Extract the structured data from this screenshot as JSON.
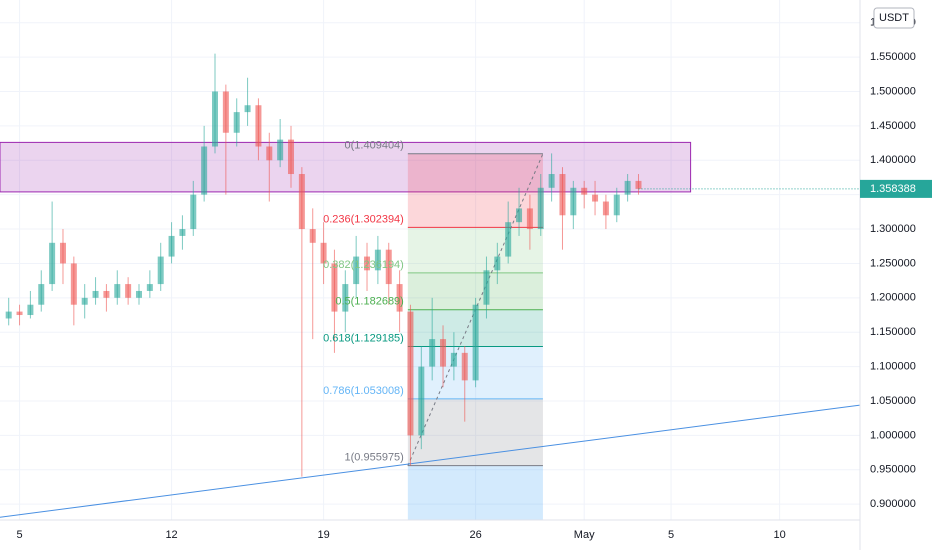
{
  "chart_data": {
    "type": "candlestick",
    "currency": "USDT",
    "xlim": [
      -0.9,
      38.7
    ],
    "xticks": [
      {
        "value": 0,
        "label": "5"
      },
      {
        "value": 7,
        "label": "12"
      },
      {
        "value": 14,
        "label": "19"
      },
      {
        "value": 21,
        "label": "26"
      },
      {
        "value": 26,
        "label": "May"
      },
      {
        "value": 30,
        "label": "5"
      },
      {
        "value": 35,
        "label": "10"
      }
    ],
    "ylim": [
      0.877,
      1.633
    ],
    "yticks": [
      {
        "value": 0.9,
        "label": "0.900000"
      },
      {
        "value": 0.95,
        "label": "0.950000"
      },
      {
        "value": 1.0,
        "label": "1.000000"
      },
      {
        "value": 1.05,
        "label": "1.050000"
      },
      {
        "value": 1.1,
        "label": "1.100000"
      },
      {
        "value": 1.15,
        "label": "1.150000"
      },
      {
        "value": 1.2,
        "label": "1.200000"
      },
      {
        "value": 1.25,
        "label": "1.250000"
      },
      {
        "value": 1.3,
        "label": "1.300000"
      },
      {
        "value": 1.35,
        "label": "1.350000"
      },
      {
        "value": 1.4,
        "label": "1.400000"
      },
      {
        "value": 1.45,
        "label": "1.450000"
      },
      {
        "value": 1.5,
        "label": "1.500000"
      },
      {
        "value": 1.55,
        "label": "1.550000"
      },
      {
        "value": 1.6,
        "label": "1.600000"
      }
    ],
    "grid": true,
    "up_color": "#26a69a",
    "down_color": "#ef5350",
    "x": [
      -0.5,
      0,
      0.5,
      1,
      1.5,
      2,
      2.5,
      3,
      3.5,
      4,
      4.5,
      5,
      5.5,
      6,
      6.5,
      7,
      7.5,
      8,
      8.5,
      9,
      9.5,
      10,
      10.5,
      11,
      11.5,
      12,
      12.5,
      13,
      13.5,
      14,
      14.5,
      15,
      15.5,
      16,
      16.5,
      17,
      17.5,
      18,
      18.5,
      19,
      19.5,
      20,
      20.5,
      21,
      21.5,
      22,
      22.5,
      23,
      23.5,
      24,
      24.5,
      25,
      25.5,
      26,
      26.5,
      27,
      27.5,
      28,
      28.5
    ],
    "open": [
      1.17,
      1.18,
      1.175,
      1.19,
      1.22,
      1.28,
      1.25,
      1.19,
      1.2,
      1.21,
      1.2,
      1.22,
      1.2,
      1.21,
      1.22,
      1.26,
      1.29,
      1.3,
      1.35,
      1.42,
      1.5,
      1.44,
      1.47,
      1.48,
      1.42,
      1.4,
      1.43,
      1.38,
      1.3,
      1.28,
      1.25,
      1.18,
      1.22,
      1.26,
      1.24,
      1.27,
      1.22,
      1.18,
      1.0,
      1.1,
      1.14,
      1.1,
      1.12,
      1.08,
      1.19,
      1.24,
      1.26,
      1.31,
      1.33,
      1.3,
      1.36,
      1.38,
      1.32,
      1.36,
      1.35,
      1.34,
      1.32,
      1.35,
      1.37
    ],
    "high": [
      1.2,
      1.19,
      1.21,
      1.24,
      1.34,
      1.3,
      1.26,
      1.22,
      1.23,
      1.22,
      1.24,
      1.23,
      1.22,
      1.24,
      1.28,
      1.31,
      1.32,
      1.37,
      1.45,
      1.555,
      1.51,
      1.49,
      1.52,
      1.49,
      1.44,
      1.46,
      1.45,
      1.39,
      1.33,
      1.31,
      1.27,
      1.24,
      1.29,
      1.28,
      1.29,
      1.28,
      1.24,
      1.19,
      1.13,
      1.2,
      1.16,
      1.15,
      1.13,
      1.2,
      1.26,
      1.28,
      1.34,
      1.36,
      1.35,
      1.38,
      1.41,
      1.39,
      1.37,
      1.37,
      1.37,
      1.35,
      1.36,
      1.38,
      1.38
    ],
    "low": [
      1.16,
      1.16,
      1.17,
      1.18,
      1.21,
      1.22,
      1.16,
      1.17,
      1.19,
      1.18,
      1.19,
      1.19,
      1.19,
      1.2,
      1.21,
      1.25,
      1.27,
      1.29,
      1.34,
      1.41,
      1.35,
      1.42,
      1.45,
      1.4,
      1.34,
      1.39,
      1.36,
      0.94,
      1.14,
      1.22,
      1.12,
      1.15,
      1.2,
      1.21,
      1.22,
      1.19,
      1.15,
      0.956,
      0.98,
      1.08,
      1.07,
      1.08,
      1.02,
      1.07,
      1.17,
      1.22,
      1.25,
      1.29,
      1.27,
      1.29,
      1.34,
      1.27,
      1.3,
      1.33,
      1.32,
      1.3,
      1.31,
      1.34,
      1.35
    ],
    "close": [
      1.18,
      1.175,
      1.19,
      1.22,
      1.28,
      1.25,
      1.19,
      1.2,
      1.21,
      1.2,
      1.22,
      1.2,
      1.21,
      1.22,
      1.26,
      1.29,
      1.3,
      1.35,
      1.42,
      1.5,
      1.44,
      1.47,
      1.48,
      1.42,
      1.4,
      1.43,
      1.38,
      1.3,
      1.28,
      1.25,
      1.18,
      1.22,
      1.26,
      1.24,
      1.27,
      1.22,
      1.18,
      1.0,
      1.1,
      1.14,
      1.1,
      1.12,
      1.08,
      1.19,
      1.24,
      1.26,
      1.31,
      1.33,
      1.3,
      1.36,
      1.38,
      1.32,
      1.36,
      1.35,
      1.34,
      1.32,
      1.35,
      1.37,
      1.358388
    ],
    "zone": {
      "x": [
        -0.9,
        30.9
      ],
      "y": [
        1.354,
        1.426
      ],
      "color": "#9c27b0"
    },
    "trendline": {
      "x": [
        -0.9,
        38.7
      ],
      "y": [
        0.881,
        1.044
      ],
      "color": "#4a90e2"
    },
    "fib": {
      "x": [
        17.88,
        24.1
      ],
      "below_color": "#2196f3",
      "levels": [
        {
          "label": "0(1.409404)",
          "value": 1.409404,
          "color": "#787b86"
        },
        {
          "label": "0.236(1.302394)",
          "value": 1.302394,
          "color": "#f23645"
        },
        {
          "label": "0.382(1.236194)",
          "value": 1.236194,
          "color": "#81c784"
        },
        {
          "label": "0.5(1.182689)",
          "value": 1.182689,
          "color": "#4caf50"
        },
        {
          "label": "0.618(1.129185)",
          "value": 1.129185,
          "color": "#089981"
        },
        {
          "label": "0.786(1.053008)",
          "value": 1.053008,
          "color": "#64b5f6"
        },
        {
          "label": "1(0.955975)",
          "value": 0.955975,
          "color": "#787b86"
        }
      ]
    }
  }
}
